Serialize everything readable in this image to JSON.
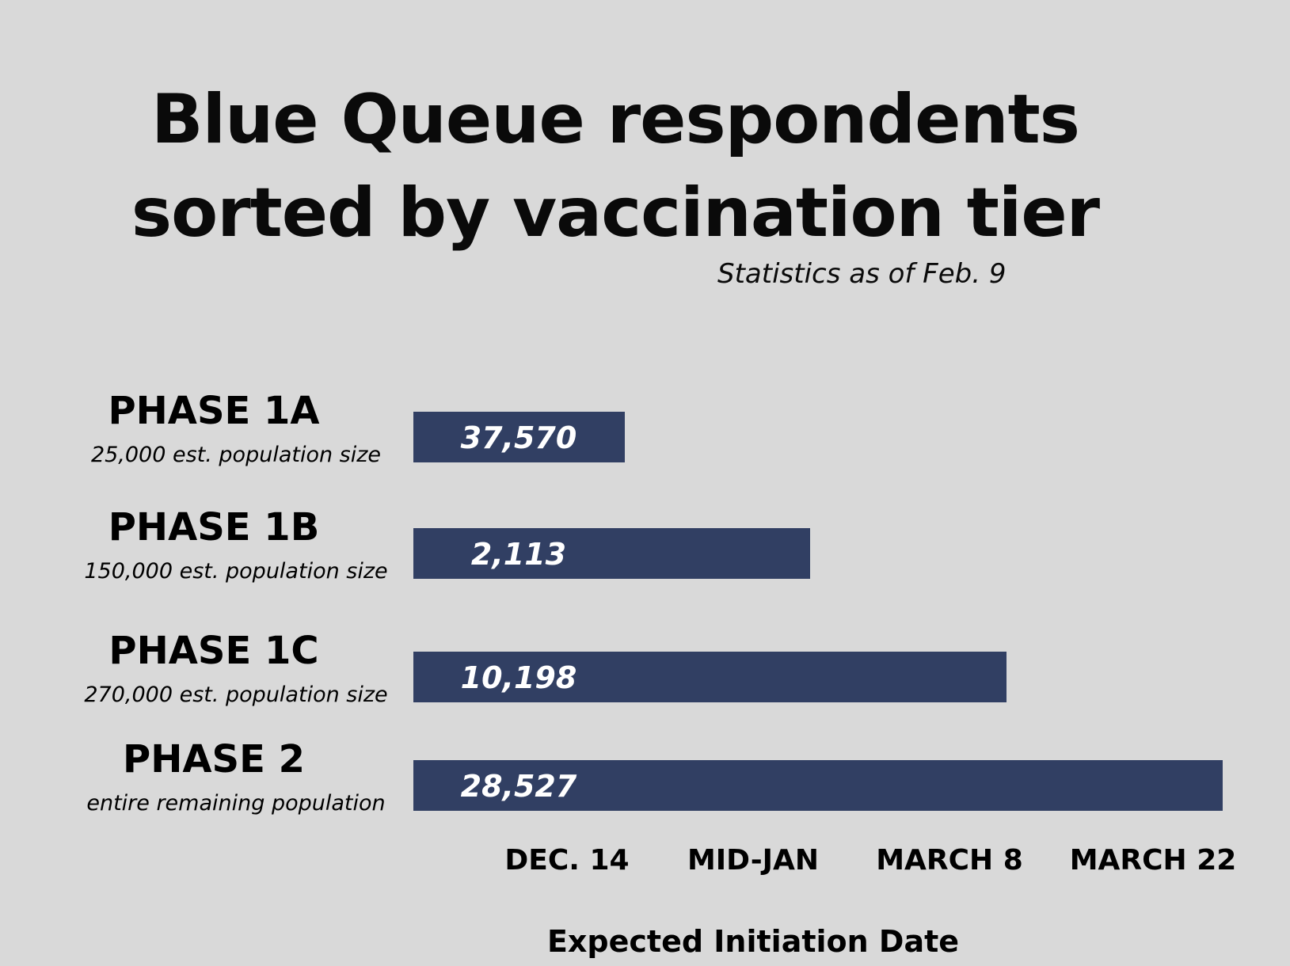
{
  "chart_data": {
    "type": "bar",
    "orientation": "horizontal",
    "title_lines": [
      "Blue Queue respondents",
      "sorted by vaccination tier"
    ],
    "subtitle": "Statistics as of Feb. 9",
    "xlabel": "Expected Initiation Date",
    "x_ticks": [
      "DEC. 14",
      "MID-JAN",
      "MARCH 8",
      "MARCH 22"
    ],
    "categories": [
      "PHASE 1A",
      "PHASE 1B",
      "PHASE 1C",
      "PHASE 2"
    ],
    "category_notes": [
      "25,000 est. population size",
      "150,000 est. population size",
      "270,000 est. population size",
      "entire remaining population"
    ],
    "values": [
      37570,
      2113,
      10198,
      28527
    ],
    "value_labels": [
      "37,570",
      "2,113",
      "10,198",
      "28,527"
    ],
    "bar_extent_tick": [
      "DEC. 14",
      "MID-JAN",
      "MARCH 8",
      "MARCH 22"
    ],
    "grid": false,
    "bar_color": "#313f63",
    "background_color": "#d9d9d9"
  }
}
